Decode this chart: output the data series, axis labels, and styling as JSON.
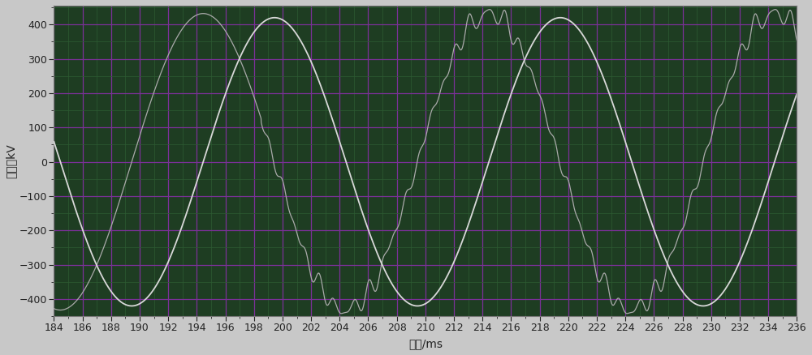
{
  "x_min": 184,
  "x_max": 236,
  "y_min": -450,
  "y_max": 455,
  "y_ticks": [
    -400,
    -300,
    -200,
    -100,
    0,
    100,
    200,
    300,
    400
  ],
  "x_ticks": [
    184,
    186,
    188,
    190,
    192,
    194,
    196,
    198,
    200,
    202,
    204,
    206,
    208,
    210,
    212,
    214,
    216,
    218,
    220,
    222,
    224,
    226,
    228,
    230,
    232,
    234,
    236
  ],
  "xlabel": "时间/ms",
  "ylabel": "幅値／kV",
  "plot_bg_color": "#1e3d22",
  "fig_bg_color": "#c8c8c8",
  "grid_color_major": "#7b3098",
  "grid_color_minor": "#2d5c32",
  "sine1_color": "#d8d8d8",
  "sine2_color": "#aaaaaa",
  "sine1_amplitude": 420,
  "sine2_amplitude": 432,
  "freq_hz": 50,
  "sine1_phase_deg": 100,
  "sine2_phase_deg": -170,
  "noise_start_ms": 198.5,
  "noise_amplitude": 22,
  "font_color": "#222222",
  "tick_fontsize": 9,
  "label_fontsize": 10
}
